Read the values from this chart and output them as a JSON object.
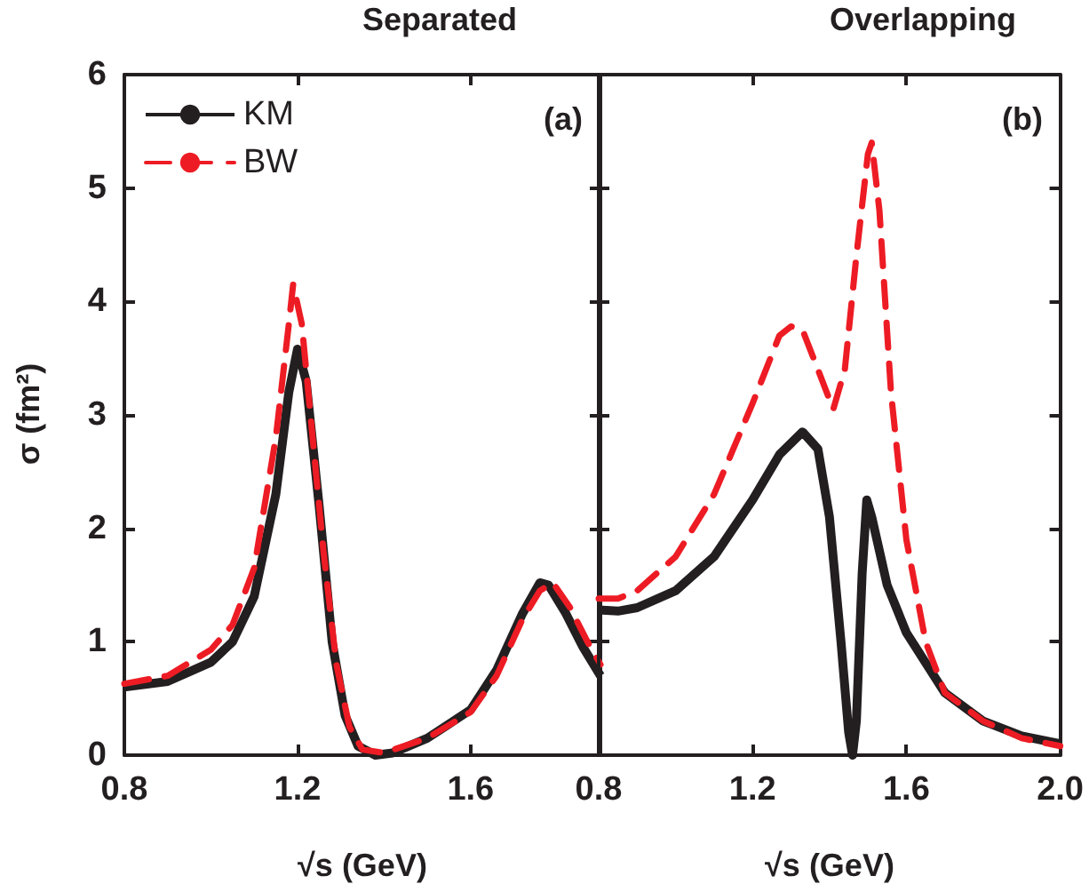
{
  "chart_data": [
    {
      "type": "line",
      "title": "Separated",
      "xlabel": "√s (GeV)",
      "ylabel": "σ (fm²)",
      "annotations": [
        "(a)"
      ],
      "xlim": [
        0.8,
        1.9
      ],
      "xticks": [
        0.8,
        1.2,
        1.6
      ],
      "ylim": [
        0,
        6
      ],
      "yticks": [
        0,
        1,
        2,
        3,
        4,
        5,
        6
      ],
      "legend": "top left",
      "grid": false,
      "marker": "none",
      "series": [
        {
          "name": "KM",
          "color": "#231f20",
          "line_style": "solid",
          "x": [
            0.8,
            0.9,
            1.0,
            1.05,
            1.1,
            1.15,
            1.18,
            1.2,
            1.22,
            1.25,
            1.28,
            1.31,
            1.34,
            1.38,
            1.42,
            1.5,
            1.6,
            1.66,
            1.72,
            1.76,
            1.78,
            1.82,
            1.86,
            1.9
          ],
          "values": [
            0.6,
            0.65,
            0.82,
            1.0,
            1.4,
            2.3,
            3.2,
            3.58,
            3.3,
            2.2,
            1.0,
            0.35,
            0.08,
            0.0,
            0.02,
            0.15,
            0.4,
            0.75,
            1.25,
            1.52,
            1.5,
            1.25,
            0.95,
            0.7
          ]
        },
        {
          "name": "BW",
          "color": "#ed1c24",
          "line_style": "dashed",
          "x": [
            0.8,
            0.9,
            1.0,
            1.05,
            1.1,
            1.15,
            1.18,
            1.19,
            1.21,
            1.23,
            1.26,
            1.29,
            1.32,
            1.35,
            1.4,
            1.5,
            1.6,
            1.66,
            1.72,
            1.76,
            1.79,
            1.83,
            1.87,
            1.9
          ],
          "values": [
            0.63,
            0.7,
            0.93,
            1.15,
            1.65,
            2.8,
            3.8,
            4.15,
            3.8,
            3.0,
            1.8,
            0.8,
            0.25,
            0.05,
            0.02,
            0.15,
            0.38,
            0.7,
            1.2,
            1.45,
            1.52,
            1.3,
            1.0,
            0.8
          ]
        }
      ]
    },
    {
      "type": "line",
      "title": "Overlapping",
      "xlabel": "√s (GeV)",
      "annotations": [
        "(b)"
      ],
      "xlim": [
        0.8,
        2.0
      ],
      "xticks": [
        0.8,
        1.2,
        1.6,
        {
          "value": 2.0,
          "label": "2.0"
        }
      ],
      "ylim": [
        0,
        6
      ],
      "yticks": [
        0,
        1,
        2,
        3,
        4,
        5,
        6
      ],
      "tick_labels": "x",
      "grid": false,
      "marker": "none",
      "series": [
        {
          "color": "#231f20",
          "line_style": "solid",
          "x": [
            0.8,
            0.85,
            0.9,
            1.0,
            1.1,
            1.2,
            1.27,
            1.33,
            1.37,
            1.4,
            1.43,
            1.45,
            1.46,
            1.47,
            1.485,
            1.497,
            1.51,
            1.55,
            1.6,
            1.7,
            1.8,
            1.9,
            2.0
          ],
          "values": [
            1.28,
            1.27,
            1.3,
            1.45,
            1.75,
            2.25,
            2.65,
            2.85,
            2.7,
            2.1,
            1.0,
            0.2,
            0.0,
            0.3,
            1.6,
            2.25,
            2.1,
            1.5,
            1.08,
            0.55,
            0.3,
            0.17,
            0.1
          ]
        },
        {
          "color": "#ed1c24",
          "line_style": "dashed",
          "x": [
            0.8,
            0.85,
            0.9,
            1.0,
            1.1,
            1.2,
            1.27,
            1.3,
            1.33,
            1.37,
            1.41,
            1.44,
            1.47,
            1.5,
            1.51,
            1.53,
            1.56,
            1.6,
            1.65,
            1.7,
            1.8,
            1.9,
            2.0
          ],
          "values": [
            1.38,
            1.38,
            1.45,
            1.75,
            2.3,
            3.1,
            3.7,
            3.78,
            3.75,
            3.4,
            3.05,
            3.4,
            4.4,
            5.3,
            5.4,
            4.8,
            3.2,
            1.9,
            1.0,
            0.55,
            0.3,
            0.15,
            0.08
          ]
        }
      ]
    }
  ]
}
